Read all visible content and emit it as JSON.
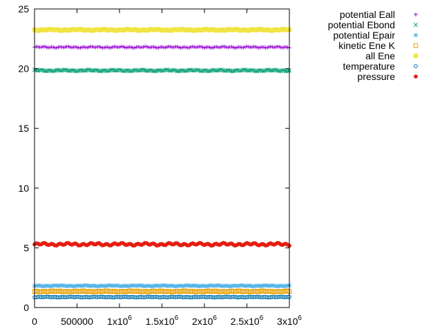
{
  "chart_data": {
    "type": "scatter",
    "title": "",
    "xlabel": "",
    "ylabel": "",
    "xlim": [
      0,
      3000000
    ],
    "ylim": [
      0,
      25
    ],
    "grid": false,
    "legend_position": "top-right outside",
    "x_ticks": [
      {
        "value": 0,
        "base": "0",
        "sup": ""
      },
      {
        "value": 500000,
        "base": "500000",
        "sup": ""
      },
      {
        "value": 1000000,
        "base": "1x10",
        "sup": "6"
      },
      {
        "value": 1500000,
        "base": "1.5x10",
        "sup": "6"
      },
      {
        "value": 2000000,
        "base": "2x10",
        "sup": "6"
      },
      {
        "value": 2500000,
        "base": "2.5x10",
        "sup": "6"
      },
      {
        "value": 3000000,
        "base": "3x10",
        "sup": "6"
      }
    ],
    "y_ticks": [
      {
        "value": 0,
        "label": "0"
      },
      {
        "value": 5,
        "label": "5"
      },
      {
        "value": 10,
        "label": "10"
      },
      {
        "value": 15,
        "label": "15"
      },
      {
        "value": 20,
        "label": "20"
      },
      {
        "value": 25,
        "label": "25"
      }
    ],
    "x_sample": {
      "start": 0,
      "end": 3000000,
      "step": 20000
    },
    "series": [
      {
        "name": "potential Eall",
        "marker": "plus",
        "color": "#9400d3",
        "mean": 21.8,
        "amplitude": 0.06
      },
      {
        "name": "potential Ebond",
        "marker": "cross",
        "color": "#009e73",
        "mean": 19.85,
        "amplitude": 0.07
      },
      {
        "name": "potential Epair",
        "marker": "star",
        "color": "#56b4e9",
        "mean": 1.82,
        "amplitude": 0.05
      },
      {
        "name": "kinetic Ene K",
        "marker": "open-square",
        "color": "#e69f00",
        "mean": 1.35,
        "amplitude": 0.05
      },
      {
        "name": "all Ene",
        "marker": "filled-square",
        "color": "#f0e442",
        "mean": 23.25,
        "amplitude": 0.07
      },
      {
        "name": "temperature",
        "marker": "open-circle",
        "color": "#0072b2",
        "mean": 0.88,
        "amplitude": 0.03
      },
      {
        "name": "pressure",
        "marker": "filled-circle",
        "color": "#e51e10",
        "mean": 5.3,
        "amplitude": 0.12
      }
    ]
  }
}
